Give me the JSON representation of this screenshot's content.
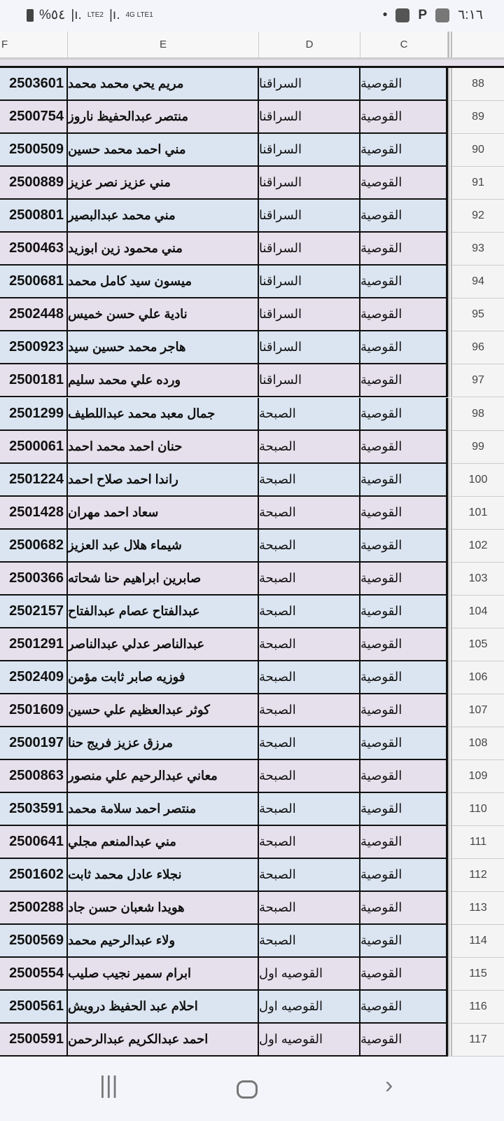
{
  "status_bar": {
    "battery": "%٥٤",
    "network1": "LTE2",
    "network2": "4G LTE1",
    "time": "٦:١٦"
  },
  "columns": {
    "f": "F",
    "e": "E",
    "d": "D",
    "c": "C"
  },
  "rows": [
    {
      "n": "88",
      "c": "القوصية",
      "d": "السراقنا",
      "e": "مريم يحي محمد محمد",
      "f": "2503601"
    },
    {
      "n": "89",
      "c": "القوصية",
      "d": "السراقنا",
      "e": "منتصر عبدالحفيظ ناروز",
      "f": "2500754"
    },
    {
      "n": "90",
      "c": "القوصية",
      "d": "السراقنا",
      "e": "مني احمد محمد حسين",
      "f": "2500509"
    },
    {
      "n": "91",
      "c": "القوصية",
      "d": "السراقنا",
      "e": "مني عزيز نصر عزيز",
      "f": "2500889"
    },
    {
      "n": "92",
      "c": "القوصية",
      "d": "السراقنا",
      "e": "مني محمد عبدالبصير",
      "f": "2500801"
    },
    {
      "n": "93",
      "c": "القوصية",
      "d": "السراقنا",
      "e": "مني محمود زين ابوزيد",
      "f": "2500463"
    },
    {
      "n": "94",
      "c": "القوصية",
      "d": "السراقنا",
      "e": "ميسون سيد كامل محمد",
      "f": "2500681"
    },
    {
      "n": "95",
      "c": "القوصية",
      "d": "السراقنا",
      "e": "نادية علي حسن خميس",
      "f": "2502448"
    },
    {
      "n": "96",
      "c": "القوصية",
      "d": "السراقنا",
      "e": "هاجر محمد حسين سيد",
      "f": "2500923"
    },
    {
      "n": "97",
      "c": "القوصية",
      "d": "السراقنا",
      "e": "ورده علي محمد سليم",
      "f": "2500181"
    },
    {
      "n": "98",
      "c": "القوصية",
      "d": "الصبحة",
      "e": "جمال معبد محمد عبداللطيف",
      "f": "2501299"
    },
    {
      "n": "99",
      "c": "القوصية",
      "d": "الصبحة",
      "e": "حنان احمد محمد احمد",
      "f": "2500061"
    },
    {
      "n": "100",
      "c": "القوصية",
      "d": "الصبحة",
      "e": "راندا احمد صلاح احمد",
      "f": "2501224"
    },
    {
      "n": "101",
      "c": "القوصية",
      "d": "الصبحة",
      "e": "سعاد احمد مهران",
      "f": "2501428"
    },
    {
      "n": "102",
      "c": "القوصية",
      "d": "الصبحة",
      "e": "شيماء هلال عبد العزيز",
      "f": "2500682"
    },
    {
      "n": "103",
      "c": "القوصية",
      "d": "الصبحة",
      "e": "صابرين ابراهيم حنا شحاته",
      "f": "2500366"
    },
    {
      "n": "104",
      "c": "القوصية",
      "d": "الصبحة",
      "e": "عبدالفتاح عصام عبدالفتاح",
      "f": "2502157"
    },
    {
      "n": "105",
      "c": "القوصية",
      "d": "الصبحة",
      "e": "عبدالناصر عدلي عبدالناصر",
      "f": "2501291"
    },
    {
      "n": "106",
      "c": "القوصية",
      "d": "الصبحة",
      "e": "فوزيه صابر ثابت مؤمن",
      "f": "2502409"
    },
    {
      "n": "107",
      "c": "القوصية",
      "d": "الصبحة",
      "e": "كوثر عبدالعظيم علي حسين",
      "f": "2501609"
    },
    {
      "n": "108",
      "c": "القوصية",
      "d": "الصبحة",
      "e": "مرزق عزيز فريج حنا",
      "f": "2500197"
    },
    {
      "n": "109",
      "c": "القوصية",
      "d": "الصبحة",
      "e": "معاني عبدالرحيم علي منصور",
      "f": "2500863"
    },
    {
      "n": "110",
      "c": "القوصية",
      "d": "الصبحة",
      "e": "منتصر احمد سلامة محمد",
      "f": "2503591"
    },
    {
      "n": "111",
      "c": "القوصية",
      "d": "الصبحة",
      "e": "مني عبدالمنعم مجلي",
      "f": "2500641"
    },
    {
      "n": "112",
      "c": "القوصية",
      "d": "الصبحة",
      "e": "نجلاء عادل محمد ثابت",
      "f": "2501602"
    },
    {
      "n": "113",
      "c": "القوصية",
      "d": "الصبحة",
      "e": "هويدا شعبان حسن جاد",
      "f": "2500288"
    },
    {
      "n": "114",
      "c": "القوصية",
      "d": "الصبحة",
      "e": "ولاء عبدالرحيم محمد",
      "f": "2500569"
    },
    {
      "n": "115",
      "c": "القوصية",
      "d": "القوصيه اول",
      "e": "ابرام سمير نجيب صليب",
      "f": "2500554"
    },
    {
      "n": "116",
      "c": "القوصية",
      "d": "القوصيه اول",
      "e": "احلام عبد الحفيظ درويش",
      "f": "2500561"
    },
    {
      "n": "117",
      "c": "القوصية",
      "d": "القوصيه اول",
      "e": "احمد عبدالكريم عبدالرحمن",
      "f": "2500591"
    }
  ],
  "colors": {
    "row_even": "#dbe5f1",
    "row_odd": "#e6e0ec"
  }
}
